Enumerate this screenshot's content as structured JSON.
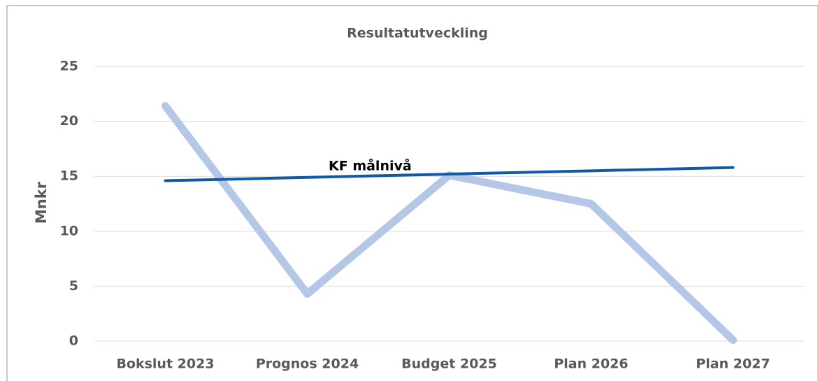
{
  "chart_data": {
    "type": "line",
    "title": "Resultatutveckling",
    "y_label": "Mnkr",
    "categories": [
      "Bokslut 2023",
      "Prognos 2024",
      "Budget 2025",
      "Plan 2026",
      "Plan 2027"
    ],
    "series": [
      {
        "color": "#b4c7e7",
        "values": [
          21.4,
          4.3,
          15.1,
          12.5,
          0.1
        ]
      },
      {
        "name": "KF målnivå",
        "color": "#0e5aa7",
        "values": [
          14.6,
          14.9,
          15.2,
          15.5,
          15.8
        ]
      }
    ],
    "ylim": [
      0,
      25
    ],
    "yticks": [
      0,
      5,
      10,
      15,
      20,
      25
    ],
    "grid": true
  }
}
